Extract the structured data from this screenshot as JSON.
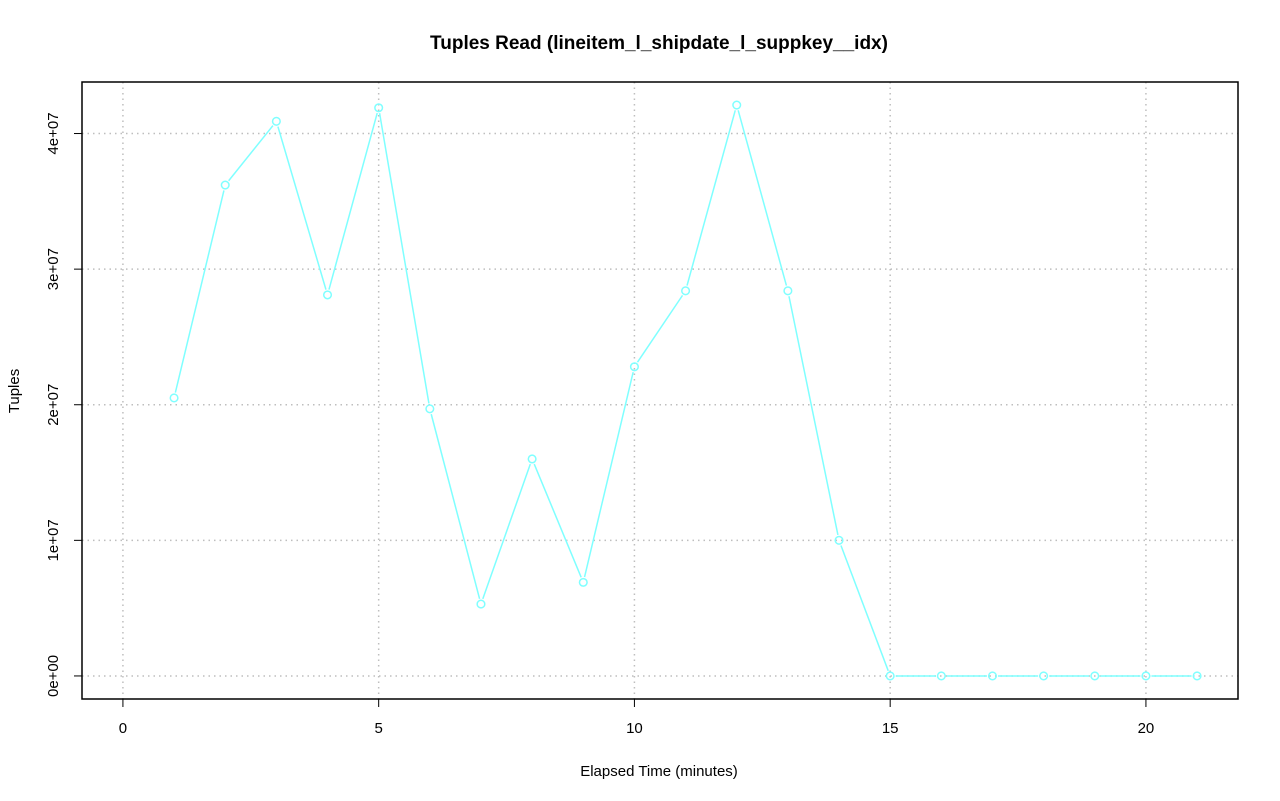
{
  "chart_data": {
    "type": "line",
    "title": "Tuples Read (lineitem_l_shipdate_l_suppkey__idx)",
    "xlabel": "Elapsed Time (minutes)",
    "ylabel": "Tuples",
    "xlim": [
      -0.8,
      21.8
    ],
    "ylim": [
      -1700000,
      43800000
    ],
    "x_ticks": [
      0,
      5,
      10,
      15,
      20
    ],
    "x_tick_labels": [
      "0",
      "5",
      "10",
      "15",
      "20"
    ],
    "y_ticks": [
      0,
      10000000,
      20000000,
      30000000,
      40000000
    ],
    "y_tick_labels": [
      "0e+00",
      "1e+07",
      "2e+07",
      "3e+07",
      "4e+07"
    ],
    "grid": true,
    "series": [
      {
        "color": "#7fffff",
        "marker": "open-circle",
        "x": [
          1,
          2,
          3,
          4,
          5,
          6,
          7,
          8,
          9,
          10,
          11,
          12,
          13,
          14,
          15,
          16,
          17,
          18,
          19,
          20,
          21
        ],
        "y": [
          20500000,
          36200000,
          40900000,
          28100000,
          41900000,
          19700000,
          5300000,
          16000000,
          6900000,
          22800000,
          28400000,
          42100000,
          28400000,
          10000000,
          0,
          0,
          0,
          0,
          0,
          0,
          0
        ]
      }
    ]
  }
}
